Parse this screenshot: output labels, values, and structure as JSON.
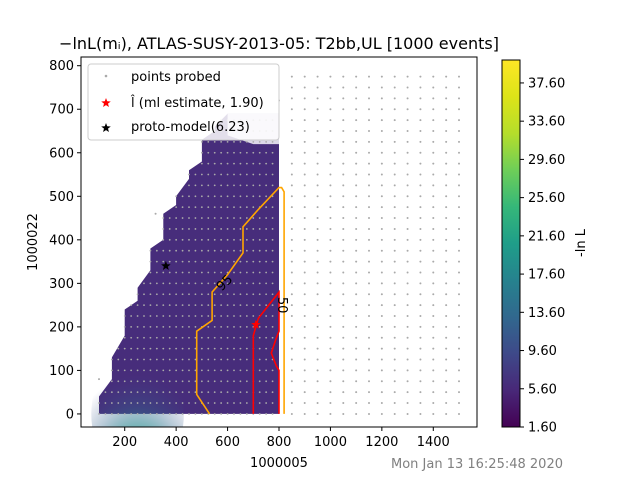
{
  "chart_data": {
    "type": "heatmap",
    "title": "−lnL(mᵢ), ATLAS-SUSY-2013-05: T2bb,UL [1000 events]",
    "xlabel": "1000005",
    "ylabel": "1000022",
    "xlim": [
      30,
      1570
    ],
    "ylim": [
      -30,
      820
    ],
    "x_ticks": [
      200,
      400,
      600,
      800,
      1000,
      1200,
      1400
    ],
    "y_ticks": [
      0,
      100,
      200,
      300,
      400,
      500,
      600,
      700,
      800
    ],
    "x_tick_labels": [
      "200",
      "400",
      "600",
      "800",
      "1000",
      "1200",
      "1400"
    ],
    "y_tick_labels": [
      "0",
      "100",
      "200",
      "300",
      "400",
      "500",
      "600",
      "700",
      "800"
    ],
    "colorbar": {
      "label": "-ln L",
      "colormap": "viridis",
      "range": [
        1.6,
        40.0
      ],
      "ticks": [
        1.6,
        5.6,
        9.6,
        13.6,
        17.6,
        21.6,
        25.6,
        29.6,
        33.6,
        37.6
      ],
      "tick_labels": [
        "1.60",
        "5.60",
        "9.60",
        "13.60",
        "17.60",
        "21.60",
        "25.60",
        "29.60",
        "33.60",
        "37.60"
      ]
    },
    "region_boundary": [
      [
        100,
        0
      ],
      [
        100,
        40
      ],
      [
        150,
        80
      ],
      [
        150,
        130
      ],
      [
        200,
        180
      ],
      [
        200,
        240
      ],
      [
        250,
        260
      ],
      [
        250,
        290
      ],
      [
        300,
        330
      ],
      [
        300,
        380
      ],
      [
        350,
        400
      ],
      [
        350,
        460
      ],
      [
        400,
        480
      ],
      [
        400,
        500
      ],
      [
        450,
        540
      ],
      [
        450,
        560
      ],
      [
        500,
        580
      ],
      [
        500,
        630
      ],
      [
        550,
        650
      ],
      [
        550,
        660
      ],
      [
        600,
        690
      ],
      [
        800,
        690
      ],
      [
        800,
        0
      ]
    ],
    "hotspot": {
      "x": 250,
      "y": 10,
      "peak_value": 40.0,
      "background_value": 4.5
    },
    "contours": [
      {
        "label": "95",
        "color": "#FFA500",
        "points": [
          [
            530,
            0
          ],
          [
            480,
            45
          ],
          [
            480,
            190
          ],
          [
            540,
            215
          ],
          [
            540,
            280
          ],
          [
            600,
            320
          ],
          [
            660,
            370
          ],
          [
            660,
            430
          ],
          [
            720,
            470
          ],
          [
            800,
            520
          ],
          [
            810,
            520
          ],
          [
            820,
            510
          ],
          [
            820,
            0
          ]
        ]
      },
      {
        "label": "50",
        "color": "#FF0000",
        "points": [
          [
            700,
            0
          ],
          [
            700,
            100
          ],
          [
            700,
            180
          ],
          [
            720,
            220
          ],
          [
            760,
            250
          ],
          [
            800,
            280
          ],
          [
            800,
            190
          ],
          [
            790,
            175
          ],
          [
            770,
            140
          ],
          [
            790,
            110
          ],
          [
            800,
            100
          ],
          [
            800,
            0
          ]
        ]
      }
    ],
    "contour_labels": [
      {
        "text": "95",
        "x": 590,
        "y": 300,
        "color": "#FFA500",
        "rotate": -45
      },
      {
        "text": "50",
        "x": 810,
        "y": 250,
        "color": "#FF0000",
        "rotate": 90
      }
    ],
    "probe_grid": {
      "x_from": 100,
      "x_to": 800,
      "x_step": 25,
      "y_from": 0,
      "y_to": 700,
      "y_step": 25,
      "edge_from_x": 850,
      "edge_to_x": 1500,
      "edge_step_x": 50,
      "edge_step_y": 25,
      "edge_max_y": 775,
      "color": "#aaaaaa"
    },
    "ml_estimate": {
      "x": 710,
      "y": 205,
      "color": "#FF0000"
    },
    "proto_model": {
      "x": 360,
      "y": 340,
      "color": "#000000"
    },
    "legend": {
      "placement": "upper-left",
      "entries": [
        {
          "marker": "dot",
          "color": "#aaaaaa",
          "label": "points probed"
        },
        {
          "marker": "star",
          "color": "#FF0000",
          "label": "l̂ (ml estimate, 1.90)"
        },
        {
          "marker": "star",
          "color": "#000000",
          "label": "proto-model(6.23)"
        }
      ]
    },
    "timestamp": "Mon Jan 13 16:25:48 2020"
  }
}
